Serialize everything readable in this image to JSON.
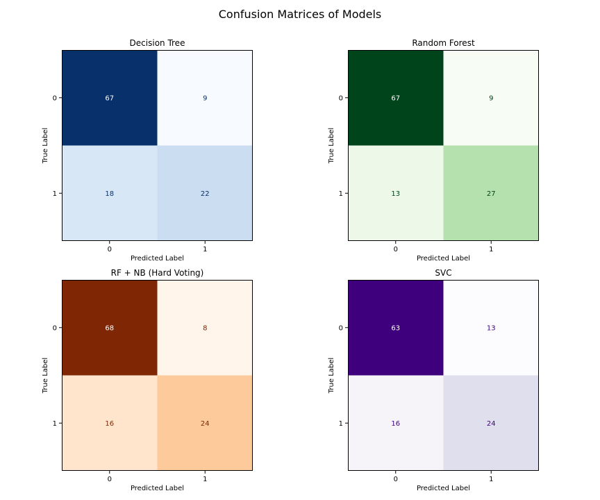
{
  "figure": {
    "title": "Confusion Matrices of Models"
  },
  "chart_data": [
    {
      "type": "heatmap",
      "title": "Decision Tree",
      "xlabel": "Predicted Label",
      "ylabel": "True Label",
      "x_ticks": [
        "0",
        "1"
      ],
      "y_ticks": [
        "0",
        "1"
      ],
      "matrix": [
        [
          67,
          9
        ],
        [
          18,
          22
        ]
      ],
      "colormap": "Blues",
      "colors": {
        "low": "#f7fbff",
        "high": "#08306b"
      }
    },
    {
      "type": "heatmap",
      "title": "Random Forest",
      "xlabel": "Predicted Label",
      "ylabel": "True Label",
      "x_ticks": [
        "0",
        "1"
      ],
      "y_ticks": [
        "0",
        "1"
      ],
      "matrix": [
        [
          67,
          9
        ],
        [
          13,
          27
        ]
      ],
      "colormap": "Greens",
      "colors": {
        "low": "#f7fcf5",
        "high": "#00441b"
      }
    },
    {
      "type": "heatmap",
      "title": "RF + NB (Hard Voting)",
      "xlabel": "Predicted Label",
      "ylabel": "True Label",
      "x_ticks": [
        "0",
        "1"
      ],
      "y_ticks": [
        "0",
        "1"
      ],
      "matrix": [
        [
          68,
          8
        ],
        [
          16,
          24
        ]
      ],
      "colormap": "Oranges",
      "colors": {
        "low": "#fff5eb",
        "high": "#7f2704"
      }
    },
    {
      "type": "heatmap",
      "title": "SVC",
      "xlabel": "Predicted Label",
      "ylabel": "True Label",
      "x_ticks": [
        "0",
        "1"
      ],
      "y_ticks": [
        "0",
        "1"
      ],
      "matrix": [
        [
          63,
          13
        ],
        [
          16,
          24
        ]
      ],
      "colormap": "Purples",
      "colors": {
        "low": "#fcfbfd",
        "high": "#3f007d"
      }
    }
  ]
}
